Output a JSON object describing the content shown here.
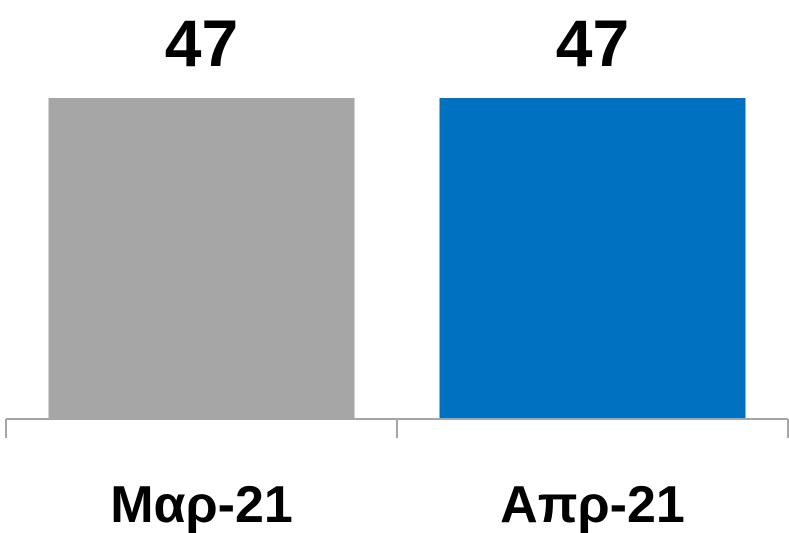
{
  "chart_data": {
    "type": "bar",
    "title": "",
    "xlabel": "",
    "ylabel": "",
    "categories": [
      "Μαρ-21",
      "Απρ-21"
    ],
    "values": [
      47,
      47
    ],
    "bar_colors": [
      "#a6a6a6",
      "#0070c0"
    ],
    "axis_color": "#a6a6a6",
    "ylim": [
      0,
      47
    ],
    "grid": false,
    "data_labels": true,
    "legend": "none"
  }
}
